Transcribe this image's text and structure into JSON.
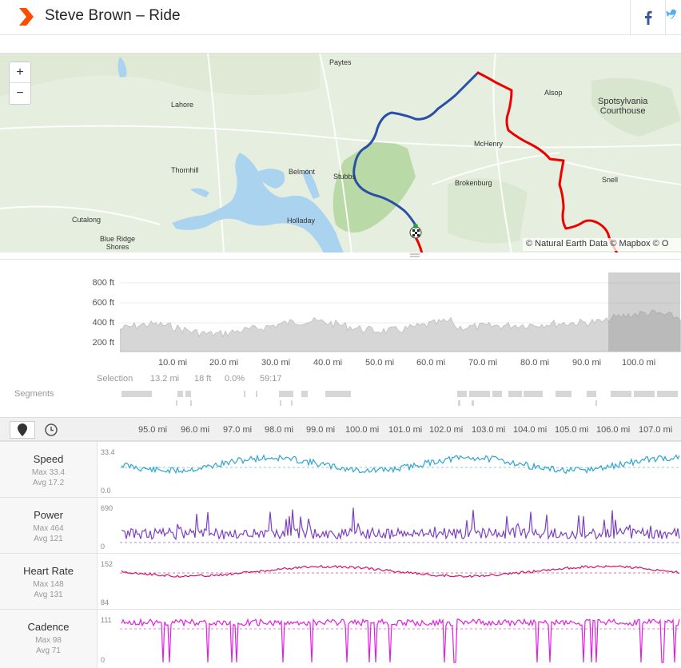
{
  "header": {
    "title": "Steve Brown – Ride",
    "accent_color": "#fc4c02"
  },
  "map": {
    "labels": {
      "paytes": "Paytes",
      "lahore": "Lahore",
      "alsop": "Alsop",
      "spotsylvania_1": "Spotsylvania",
      "spotsylvania_2": "Courthouse",
      "mchenry": "McHenry",
      "thornhill": "Thornhill",
      "belmont": "Belmont",
      "stubbs": "Stubbs",
      "brokenburg": "Brokenburg",
      "snell": "Snell",
      "cutalong": "Cutalong",
      "holladay": "Holladay",
      "blue_ridge_1": "Blue Ridge",
      "blue_ridge_2": "Shores"
    },
    "zoom_in": "+",
    "zoom_out": "−",
    "attribution": "© Natural Earth Data © Mapbox © O",
    "route_color_selected": "#2a4fa8",
    "route_color": "#ee0000"
  },
  "elevation": {
    "y_labels": [
      "800 ft",
      "600 ft",
      "400 ft",
      "200 ft"
    ],
    "x_labels": [
      "10.0 mi",
      "20.0 mi",
      "30.0 mi",
      "40.0 mi",
      "50.0 mi",
      "60.0 mi",
      "70.0 mi",
      "80.0 mi",
      "90.0 mi",
      "100.0 mi"
    ],
    "selection": {
      "label": "Selection",
      "distance": "13.2 mi",
      "elevation": "18 ft",
      "grade": "0.0%",
      "time": "59:17"
    },
    "segments_label": "Segments"
  },
  "analysis": {
    "x_labels": [
      "95.0 mi",
      "96.0 mi",
      "97.0 mi",
      "98.0 mi",
      "99.0 mi",
      "100.0 mi",
      "101.0 mi",
      "102.0 mi",
      "103.0 mi",
      "104.0 mi",
      "105.0 mi",
      "106.0 mi",
      "107.0 mi"
    ],
    "streams": [
      {
        "name": "Speed",
        "max": "Max 33.4",
        "avg": "Avg 17.2",
        "axis_max": "33.4",
        "axis_min": "0.0",
        "color": "#2fa4cf"
      },
      {
        "name": "Power",
        "max": "Max 464",
        "avg": "Avg 121",
        "axis_max": "690",
        "axis_min": "0",
        "color": "#7b3fc4"
      },
      {
        "name": "Heart Rate",
        "max": "Max 148",
        "avg": "Avg 131",
        "axis_max": "152",
        "axis_min": "84",
        "color": "#d0156a"
      },
      {
        "name": "Cadence",
        "max": "Max 98",
        "avg": "Avg 71",
        "axis_max": "111",
        "axis_min": "0",
        "color": "#e020e0"
      }
    ]
  }
}
